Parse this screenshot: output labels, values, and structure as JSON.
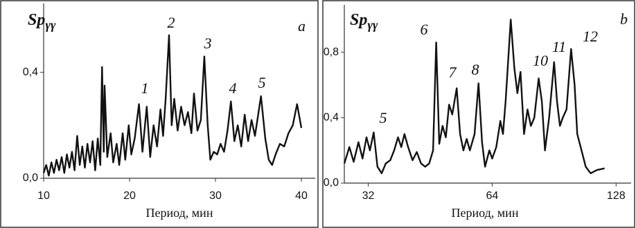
{
  "chart_data": [
    {
      "type": "line",
      "panel_label": "a",
      "ylabel": "Sp",
      "ylabel_sub": "γγ",
      "xlabel": "Период, мин",
      "xlim": [
        10,
        40
      ],
      "ylim": [
        0,
        0.66
      ],
      "xticks": [
        10,
        20,
        30,
        40
      ],
      "yticks": [
        {
          "value": 0,
          "label": "0,0"
        },
        {
          "value": 0.4,
          "label": "0,4"
        }
      ],
      "color": "#111111",
      "log_x": false,
      "annotations": [
        "1",
        "2",
        "3",
        "4",
        "5"
      ],
      "x": [
        10,
        10.3,
        10.6,
        10.9,
        11.2,
        11.5,
        11.8,
        12.1,
        12.4,
        12.7,
        13.0,
        13.3,
        13.6,
        13.9,
        14.2,
        14.5,
        14.8,
        15.1,
        15.4,
        15.7,
        16.0,
        16.3,
        16.6,
        16.8,
        17.0,
        17.1,
        17.4,
        17.8,
        18.1,
        18.5,
        18.8,
        19.2,
        19.5,
        19.9,
        20.2,
        20.6,
        21.1,
        21.5,
        22.0,
        22.4,
        22.8,
        23.2,
        23.6,
        23.9,
        24.2,
        24.6,
        24.9,
        25.2,
        25.6,
        26.0,
        26.4,
        26.8,
        27.2,
        27.5,
        27.9,
        28.3,
        28.7,
        29.1,
        29.4,
        29.8,
        30.2,
        30.6,
        31.0,
        31.4,
        31.8,
        32.2,
        32.6,
        33.0,
        33.4,
        33.8,
        34.2,
        34.6,
        35.3,
        35.8,
        36.2,
        36.6,
        37.0,
        37.5,
        38.0,
        38.5,
        39.0,
        39.5,
        40
      ],
      "values": [
        0.02,
        0.05,
        0.01,
        0.06,
        0.02,
        0.07,
        0.03,
        0.08,
        0.02,
        0.09,
        0.04,
        0.1,
        0.03,
        0.16,
        0.05,
        0.12,
        0.04,
        0.13,
        0.06,
        0.14,
        0.03,
        0.15,
        0.05,
        0.42,
        0.1,
        0.35,
        0.08,
        0.17,
        0.06,
        0.13,
        0.05,
        0.17,
        0.07,
        0.2,
        0.09,
        0.15,
        0.28,
        0.1,
        0.27,
        0.08,
        0.2,
        0.12,
        0.26,
        0.16,
        0.3,
        0.54,
        0.2,
        0.3,
        0.18,
        0.27,
        0.2,
        0.25,
        0.17,
        0.32,
        0.18,
        0.22,
        0.46,
        0.2,
        0.07,
        0.1,
        0.09,
        0.13,
        0.1,
        0.18,
        0.29,
        0.14,
        0.2,
        0.12,
        0.24,
        0.14,
        0.22,
        0.16,
        0.31,
        0.15,
        0.07,
        0.05,
        0.09,
        0.13,
        0.12,
        0.17,
        0.2,
        0.28,
        0.19
      ]
    },
    {
      "type": "line",
      "panel_label": "b",
      "ylabel": "Sp",
      "ylabel_sub": "γγ",
      "xlabel": "Период, мин",
      "xlim": [
        28,
        135
      ],
      "ylim": [
        0,
        1.09
      ],
      "xticks": [
        32,
        64,
        128
      ],
      "yticks": [
        {
          "value": 0,
          "label": "0,0"
        },
        {
          "value": 0.4,
          "label": "0,4"
        },
        {
          "value": 0.8,
          "label": "0,8"
        }
      ],
      "color": "#111111",
      "log_x": true,
      "annotations": [
        "5",
        "6",
        "7",
        "8",
        "10",
        "11",
        "12"
      ],
      "x": [
        28,
        28.8,
        29.5,
        30.3,
        31,
        31.7,
        32.3,
        33,
        33.7,
        34.5,
        35.3,
        36.2,
        37,
        37.8,
        38.5,
        39.2,
        40,
        41,
        42,
        43,
        44,
        45,
        46,
        46.8,
        47.6,
        48.5,
        49.4,
        50.3,
        51.2,
        52.5,
        53.5,
        54.5,
        55.5,
        56.5,
        58,
        59.3,
        60.5,
        61.5,
        63,
        64,
        65.5,
        67,
        68,
        69,
        71,
        72.5,
        73.7,
        75,
        76.5,
        78,
        79.5,
        81,
        83,
        84.5,
        86,
        88,
        90.5,
        92,
        93.5,
        95,
        97,
        99.5,
        101.5,
        103,
        105.5,
        108,
        111,
        115,
        120
      ],
      "values": [
        0.12,
        0.22,
        0.13,
        0.25,
        0.15,
        0.28,
        0.2,
        0.31,
        0.1,
        0.06,
        0.12,
        0.14,
        0.2,
        0.28,
        0.22,
        0.3,
        0.22,
        0.14,
        0.19,
        0.12,
        0.1,
        0.12,
        0.2,
        0.86,
        0.24,
        0.35,
        0.28,
        0.48,
        0.42,
        0.58,
        0.3,
        0.2,
        0.27,
        0.2,
        0.3,
        0.61,
        0.25,
        0.1,
        0.2,
        0.15,
        0.22,
        0.38,
        0.3,
        0.5,
        1.0,
        0.7,
        0.55,
        0.68,
        0.3,
        0.45,
        0.35,
        0.4,
        0.64,
        0.5,
        0.2,
        0.4,
        0.74,
        0.5,
        0.35,
        0.4,
        0.45,
        0.82,
        0.6,
        0.3,
        0.2,
        0.1,
        0.06,
        0.08,
        0.09
      ]
    }
  ]
}
